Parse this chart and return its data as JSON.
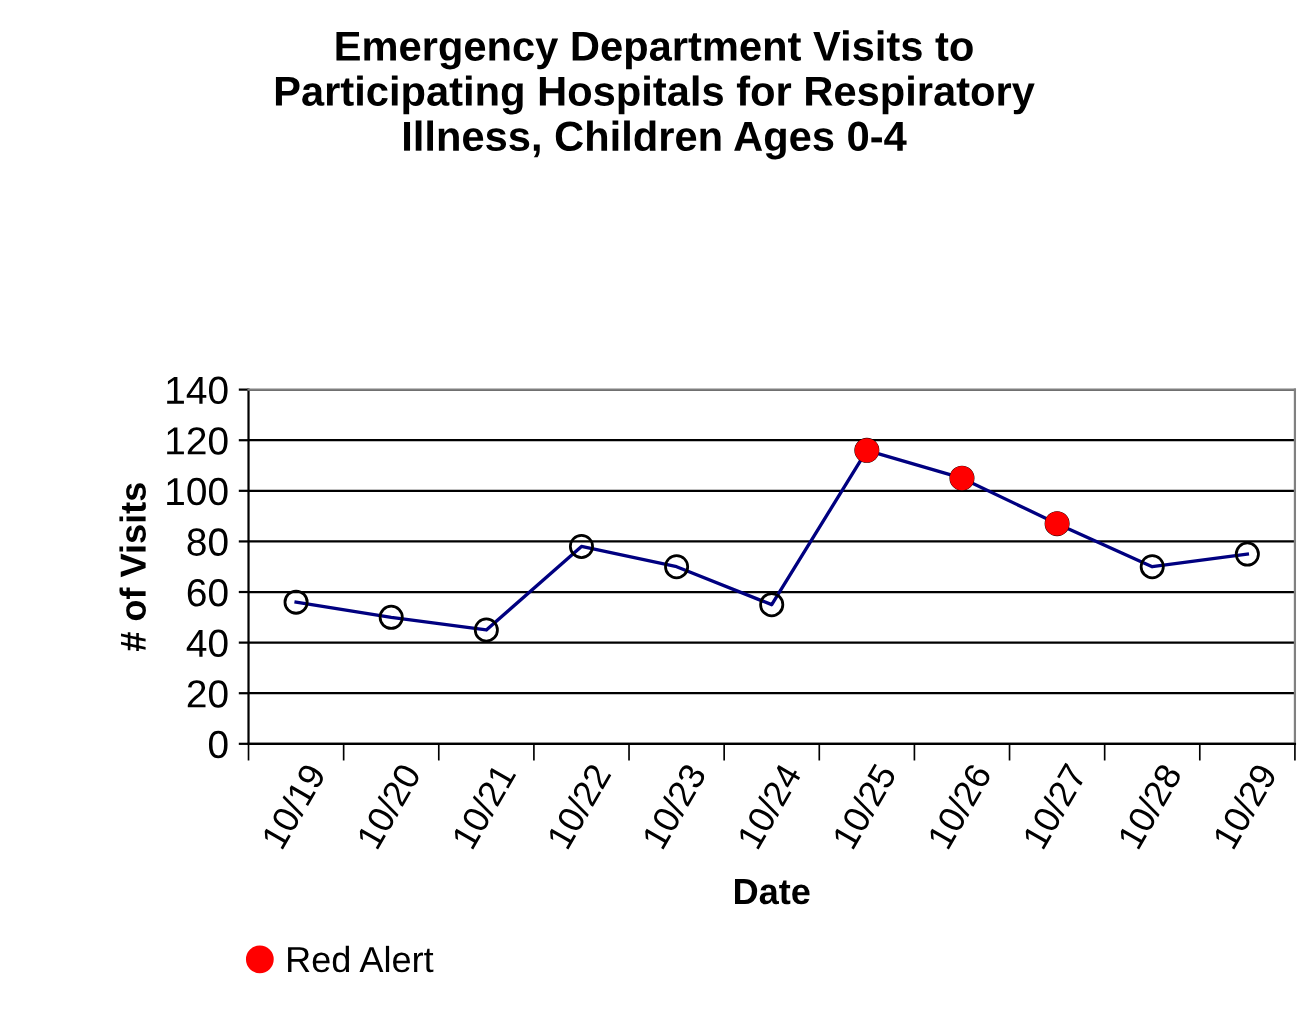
{
  "chart_data": {
    "type": "line",
    "title": "Emergency Department Visits to\nParticipating Hospitals for Respiratory\nIllness, Children Ages 0-4",
    "xlabel": "Date",
    "ylabel": "# of Visits",
    "categories": [
      "10/19",
      "10/20",
      "10/21",
      "10/22",
      "10/23",
      "10/24",
      "10/25",
      "10/26",
      "10/27",
      "10/28",
      "10/29"
    ],
    "series": [
      {
        "color": "#000080",
        "marker": "circle",
        "values": [
          56,
          50,
          45,
          78,
          70,
          55,
          116,
          105,
          87,
          70,
          75
        ]
      },
      {
        "type": "scatter",
        "name": "Red Alert",
        "color": "#ff0000",
        "marker": "circle",
        "x": [
          "10/25",
          "10/26",
          "10/27"
        ],
        "values": [
          116,
          105,
          87
        ]
      }
    ],
    "ylim": [
      0,
      140
    ],
    "yticks": [
      0,
      20,
      40,
      60,
      80,
      100,
      120,
      140
    ],
    "grid": "y",
    "legend": "bottom left"
  }
}
